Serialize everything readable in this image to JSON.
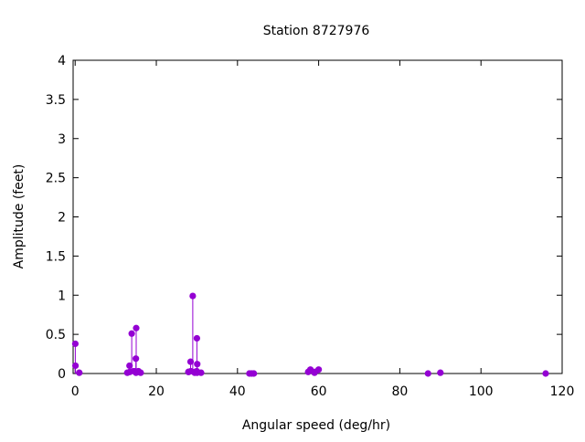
{
  "chart_data": {
    "type": "scatter",
    "style": "impulses-with-points",
    "title": "Station 8727976",
    "xlabel": "Angular speed (deg/hr)",
    "ylabel": "Amplitude (feet)",
    "xlim": [
      -0.5,
      120
    ],
    "ylim": [
      0,
      4
    ],
    "xticks": [
      0,
      20,
      40,
      60,
      80,
      100,
      120
    ],
    "yticks": [
      0,
      0.5,
      1,
      1.5,
      2,
      2.5,
      3,
      3.5,
      4
    ],
    "ytick_labels": [
      "0",
      "0.5",
      "1",
      "1.5",
      "2",
      "2.5",
      "3",
      "3.5",
      "4"
    ],
    "grid": false,
    "color": "#9400d3",
    "points": [
      [
        0.04,
        0.38
      ],
      [
        0.08,
        0.1
      ],
      [
        1.02,
        0.01
      ],
      [
        12.85,
        0.01
      ],
      [
        13.4,
        0.1
      ],
      [
        13.47,
        0.02
      ],
      [
        13.94,
        0.51
      ],
      [
        14.5,
        0.03
      ],
      [
        14.96,
        0.19
      ],
      [
        15.0,
        0.01
      ],
      [
        15.04,
        0.58
      ],
      [
        15.59,
        0.03
      ],
      [
        16.14,
        0.01
      ],
      [
        27.9,
        0.02
      ],
      [
        27.97,
        0.02
      ],
      [
        28.44,
        0.15
      ],
      [
        28.51,
        0.03
      ],
      [
        28.98,
        0.99
      ],
      [
        29.46,
        0.01
      ],
      [
        29.53,
        0.02
      ],
      [
        29.96,
        0.03
      ],
      [
        30.0,
        0.45
      ],
      [
        30.04,
        0.01
      ],
      [
        30.08,
        0.12
      ],
      [
        31.02,
        0.01
      ],
      [
        42.93,
        0.0
      ],
      [
        43.48,
        0.0
      ],
      [
        44.03,
        0.0
      ],
      [
        57.42,
        0.02
      ],
      [
        57.97,
        0.05
      ],
      [
        58.98,
        0.01
      ],
      [
        59.07,
        0.02
      ],
      [
        60.0,
        0.05
      ],
      [
        86.95,
        0.0
      ],
      [
        90.0,
        0.01
      ],
      [
        115.94,
        0.0
      ]
    ]
  }
}
